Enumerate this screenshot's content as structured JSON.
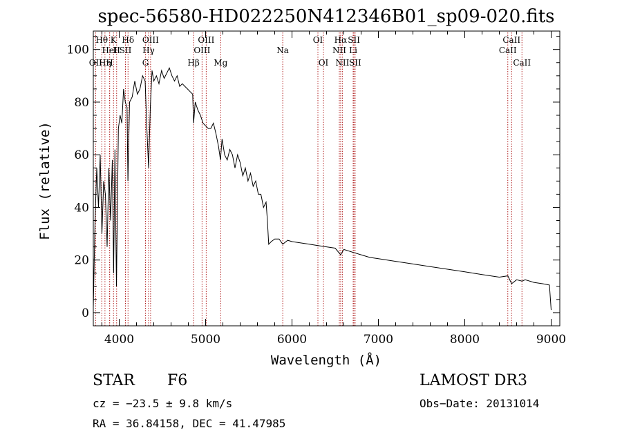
{
  "chart_data": {
    "type": "line",
    "title": "spec-56580-HD022250N412346B01_sp09-020.fits",
    "xlabel": "Wavelength (Å)",
    "ylabel": "Flux (relative)",
    "xlim": [
      3700,
      9100
    ],
    "ylim": [
      -5,
      107
    ],
    "xticks": [
      4000,
      5000,
      6000,
      7000,
      8000,
      9000
    ],
    "yticks": [
      0,
      20,
      40,
      60,
      80,
      100
    ],
    "series": [
      {
        "name": "flux",
        "x": [
          3700,
          3720,
          3740,
          3760,
          3780,
          3800,
          3820,
          3840,
          3860,
          3880,
          3900,
          3920,
          3935,
          3950,
          3968,
          3990,
          4010,
          4030,
          4050,
          4070,
          4090,
          4101,
          4120,
          4150,
          4180,
          4210,
          4240,
          4270,
          4300,
          4320,
          4340,
          4360,
          4380,
          4400,
          4430,
          4460,
          4490,
          4520,
          4550,
          4580,
          4610,
          4640,
          4670,
          4700,
          4730,
          4760,
          4790,
          4820,
          4850,
          4861,
          4880,
          4910,
          4940,
          4970,
          5000,
          5030,
          5060,
          5090,
          5120,
          5150,
          5172,
          5190,
          5220,
          5250,
          5280,
          5310,
          5340,
          5370,
          5400,
          5430,
          5460,
          5490,
          5520,
          5550,
          5580,
          5610,
          5640,
          5670,
          5700,
          5715,
          5730,
          5760,
          5800,
          5850,
          5893,
          5950,
          6000,
          6100,
          6200,
          6300,
          6400,
          6500,
          6563,
          6600,
          6700,
          6800,
          6900,
          7000,
          7200,
          7400,
          7600,
          7800,
          8000,
          8200,
          8400,
          8498,
          8542,
          8600,
          8662,
          8700,
          8800,
          8900,
          8980,
          9000
        ],
        "values": [
          2,
          35,
          55,
          40,
          60,
          30,
          50,
          45,
          25,
          55,
          35,
          58,
          15,
          62,
          10,
          70,
          75,
          72,
          85,
          80,
          78,
          50,
          80,
          82,
          88,
          83,
          85,
          90,
          88,
          70,
          55,
          78,
          92,
          88,
          90,
          87,
          92,
          89,
          91,
          93,
          90,
          88,
          90,
          86,
          87,
          86,
          85,
          84,
          83,
          72,
          80,
          77,
          75,
          72,
          71,
          70,
          70,
          72,
          68,
          63,
          58,
          66,
          60,
          58,
          62,
          60,
          55,
          60,
          57,
          52,
          55,
          50,
          53,
          48,
          50,
          45,
          45,
          40,
          42,
          35,
          26,
          27,
          28,
          28,
          26,
          27.5,
          27,
          26.5,
          26,
          25.5,
          25,
          24.5,
          22,
          24,
          23,
          22,
          21,
          20.5,
          19.5,
          18.5,
          17.5,
          16.5,
          15.5,
          14.5,
          13.5,
          14,
          11,
          12.5,
          12,
          12.5,
          11.5,
          11,
          10.5,
          1
        ]
      }
    ],
    "spectral_lines": [
      {
        "label": "Hθ",
        "wavelength": 3798,
        "row": 1
      },
      {
        "label": "OII",
        "wavelength": 3727,
        "row": 3
      },
      {
        "label": "Hη",
        "wavelength": 3835,
        "row": 3
      },
      {
        "label": "HeI",
        "wavelength": 3889,
        "row": 2
      },
      {
        "label": "H",
        "wavelength": 3970,
        "row": 2
      },
      {
        "label": "K",
        "wavelength": 3934,
        "row": 1
      },
      {
        "label": "SII",
        "wavelength": 4072,
        "row": 2
      },
      {
        "label": "Hδ",
        "wavelength": 4102,
        "row": 1
      },
      {
        "label": "H",
        "wavelength": 3889,
        "row": 3
      },
      {
        "label": "OIII",
        "wavelength": 4363,
        "row": 1
      },
      {
        "label": "Hγ",
        "wavelength": 4340,
        "row": 2
      },
      {
        "label": "G",
        "wavelength": 4304,
        "row": 3
      },
      {
        "label": "Hβ",
        "wavelength": 4861,
        "row": 3
      },
      {
        "label": "OIII",
        "wavelength": 5007,
        "row": 1
      },
      {
        "label": "OIII",
        "wavelength": 4959,
        "row": 2
      },
      {
        "label": "Mg",
        "wavelength": 5175,
        "row": 3
      },
      {
        "label": "Na",
        "wavelength": 5893,
        "row": 2
      },
      {
        "label": "OI",
        "wavelength": 6300,
        "row": 1
      },
      {
        "label": "OI",
        "wavelength": 6364,
        "row": 3
      },
      {
        "label": "Hα",
        "wavelength": 6563,
        "row": 1
      },
      {
        "label": "NII",
        "wavelength": 6548,
        "row": 2
      },
      {
        "label": "NII",
        "wavelength": 6583,
        "row": 3
      },
      {
        "label": "SII",
        "wavelength": 6717,
        "row": 1
      },
      {
        "label": "Li",
        "wavelength": 6708,
        "row": 2
      },
      {
        "label": "SII",
        "wavelength": 6731,
        "row": 3
      },
      {
        "label": "CaII",
        "wavelength": 8542,
        "row": 1
      },
      {
        "label": "CaII",
        "wavelength": 8498,
        "row": 2
      },
      {
        "label": "CaII",
        "wavelength": 8662,
        "row": 3
      }
    ]
  },
  "info": {
    "object_class": "STAR",
    "subclass": "F6",
    "survey": "LAMOST DR3",
    "cz": "cz = −23.5 ± 9.8 km/s",
    "obs_date": "Obs−Date: 20131014",
    "coords": "RA =  36.84158, DEC =  41.47985"
  },
  "colors": {
    "line": "#000000",
    "marker": "#b22222",
    "background": "#ffffff"
  }
}
